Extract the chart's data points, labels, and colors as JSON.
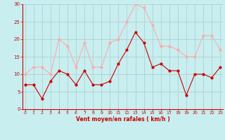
{
  "x": [
    0,
    1,
    2,
    3,
    4,
    5,
    6,
    7,
    8,
    9,
    10,
    11,
    12,
    13,
    14,
    15,
    16,
    17,
    18,
    19,
    20,
    21,
    22,
    23
  ],
  "mean_wind": [
    7,
    7,
    3,
    8,
    11,
    10,
    7,
    11,
    7,
    7,
    8,
    13,
    17,
    22,
    19,
    12,
    13,
    11,
    11,
    4,
    10,
    10,
    9,
    12
  ],
  "gust_wind": [
    10,
    12,
    12,
    10,
    20,
    18,
    12,
    19,
    12,
    12,
    19,
    20,
    25,
    30,
    29,
    24,
    18,
    18,
    17,
    15,
    15,
    21,
    21,
    17
  ],
  "mean_color": "#cc0000",
  "gust_color": "#ffaaaa",
  "bg_color": "#c8eef0",
  "grid_color": "#aacccc",
  "xlabel": "Vent moyen/en rafales ( km/h )",
  "xlabel_color": "#cc0000",
  "tick_color": "#cc0000",
  "ylim": [
    0,
    30
  ],
  "yticks": [
    0,
    5,
    10,
    15,
    20,
    25,
    30
  ],
  "xticks": [
    0,
    1,
    2,
    3,
    4,
    5,
    6,
    7,
    8,
    9,
    10,
    11,
    12,
    13,
    14,
    15,
    16,
    17,
    18,
    19,
    20,
    21,
    22,
    23
  ]
}
